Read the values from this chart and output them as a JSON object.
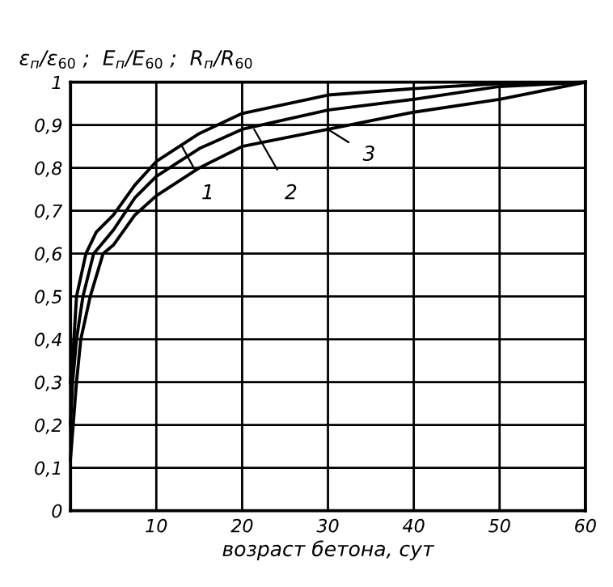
{
  "chart_data": {
    "type": "line",
    "ylabel": "ε$_{п}$/ε$_{60}$ ;  E$_{п}$/E$_{60}$ ;  R$_{п}$/R$_{60}$",
    "xlabel": "возраст бетона, сут",
    "series": [
      {
        "color": "#000000",
        "x": [
          0,
          0.4,
          0.7,
          1.8,
          3,
          5,
          7.5,
          10,
          15,
          20,
          30,
          40,
          50,
          60
        ],
        "values": [
          0.3,
          0.4,
          0.5,
          0.6,
          0.65,
          0.69,
          0.76,
          0.815,
          0.88,
          0.927,
          0.97,
          0.985,
          0.997,
          1
        ]
      },
      {
        "color": "#000000",
        "x": [
          0,
          0.25,
          0.7,
          1.45,
          2.7,
          5,
          7.5,
          10,
          15,
          20,
          30,
          40,
          50,
          60
        ],
        "values": [
          0.2,
          0.3,
          0.4,
          0.5,
          0.6,
          0.655,
          0.73,
          0.78,
          0.845,
          0.89,
          0.935,
          0.96,
          0.99,
          1
        ]
      },
      {
        "color": "#000000",
        "x": [
          0,
          0.7,
          1.2,
          2.3,
          3.8,
          5,
          7.5,
          10,
          15,
          20,
          30,
          40,
          50,
          60
        ],
        "values": [
          0.12,
          0.3,
          0.4,
          0.5,
          0.6,
          0.62,
          0.69,
          0.735,
          0.8,
          0.85,
          0.89,
          0.93,
          0.96,
          1
        ]
      }
    ],
    "annotations": [
      {
        "text": "1",
        "x": 13,
        "y": 0.85
      },
      {
        "text": "2",
        "x": 21.4,
        "y": 0.89
      },
      {
        "text": "3",
        "x": 30,
        "y": 0.89
      }
    ],
    "xlim": [
      0,
      60
    ],
    "xticks": [
      10,
      20,
      30,
      40,
      50,
      60
    ],
    "ylim": [
      0,
      1
    ],
    "yticks": [
      0,
      {
        "value": 0.1,
        "label": "0,1"
      },
      {
        "value": 0.2,
        "label": "0,2"
      },
      {
        "value": 0.3,
        "label": "0,3"
      },
      {
        "value": 0.4,
        "label": "0,4"
      },
      {
        "value": 0.5,
        "label": "0,5"
      },
      {
        "value": 0.6,
        "label": "0,6"
      },
      {
        "value": 0.7,
        "label": "0,7"
      },
      {
        "value": 0.8,
        "label": "0,8"
      },
      {
        "value": 0.9,
        "label": "0,9"
      },
      1
    ],
    "grid": true,
    "marker": "none",
    "line_style": "solid"
  }
}
